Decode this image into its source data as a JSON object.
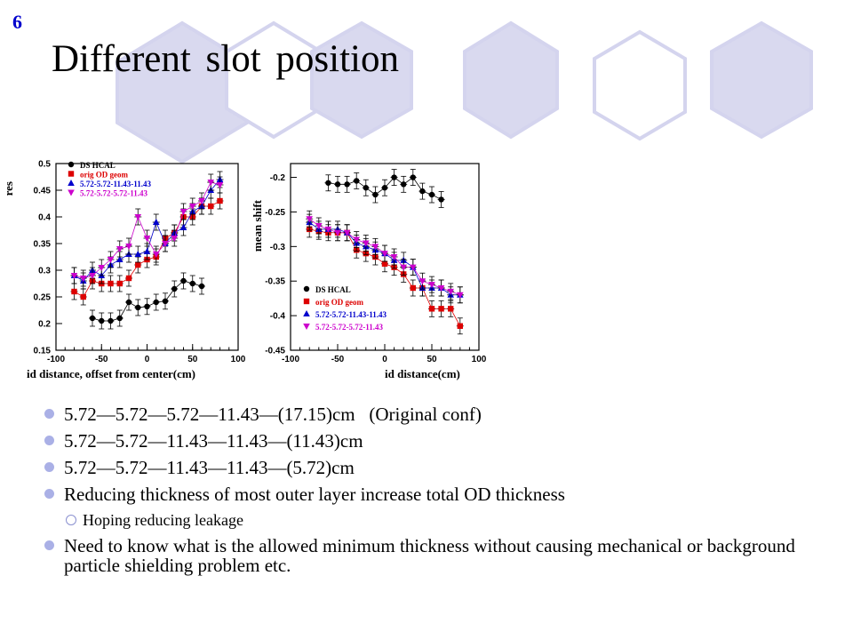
{
  "slide": {
    "number": "6",
    "title": "Different slot position",
    "colors": {
      "hex_fill": "#d9d9ef",
      "hex_stroke": "#d4d4ee",
      "bullet": "#aab0e6"
    }
  },
  "chart_data": [
    {
      "type": "scatter",
      "ylabel": "res",
      "xlabel": "id distance, offset from center(cm)",
      "xlim": [
        -100,
        100
      ],
      "ylim": [
        0.15,
        0.5
      ],
      "xticks": [
        "-100",
        "-50",
        "0",
        "50",
        "100"
      ],
      "yticks": [
        "0.15",
        "0.2",
        "0.25",
        "0.3",
        "0.35",
        "0.4",
        "0.45",
        "0.5"
      ],
      "legend_position": "top-left",
      "series": [
        {
          "name": "DS HCAL",
          "color": "#000000",
          "marker": "circle",
          "x": [
            -60,
            -50,
            -40,
            -30,
            -20,
            -10,
            0,
            10,
            20,
            30,
            40,
            50,
            60
          ],
          "y": [
            0.21,
            0.205,
            0.205,
            0.21,
            0.24,
            0.23,
            0.232,
            0.24,
            0.242,
            0.265,
            0.28,
            0.275,
            0.27
          ]
        },
        {
          "name": "orig OD geom",
          "color": "#dd0000",
          "marker": "square",
          "x": [
            -80,
            -70,
            -60,
            -50,
            -40,
            -30,
            -20,
            -10,
            0,
            10,
            20,
            30,
            40,
            50,
            60,
            70,
            80
          ],
          "y": [
            0.26,
            0.25,
            0.28,
            0.275,
            0.275,
            0.275,
            0.285,
            0.31,
            0.32,
            0.325,
            0.36,
            0.37,
            0.4,
            0.4,
            0.42,
            0.42,
            0.43
          ]
        },
        {
          "name": "5.72-5.72-11.43-11.43",
          "color": "#0000cc",
          "marker": "triangle-up",
          "x": [
            -80,
            -70,
            -60,
            -50,
            -40,
            -30,
            -20,
            -10,
            0,
            10,
            20,
            30,
            40,
            50,
            60,
            70,
            80
          ],
          "y": [
            0.29,
            0.28,
            0.3,
            0.29,
            0.31,
            0.32,
            0.33,
            0.33,
            0.335,
            0.39,
            0.35,
            0.37,
            0.38,
            0.41,
            0.42,
            0.45,
            0.47
          ]
        },
        {
          "name": "5.72-5.72-5.72-11.43",
          "color": "#cc00cc",
          "marker": "triangle-down",
          "x": [
            -80,
            -70,
            -60,
            -50,
            -40,
            -30,
            -20,
            -10,
            0,
            10,
            20,
            30,
            40,
            50,
            60,
            70,
            80
          ],
          "y": [
            0.29,
            0.285,
            0.29,
            0.305,
            0.32,
            0.34,
            0.345,
            0.4,
            0.36,
            0.33,
            0.35,
            0.36,
            0.41,
            0.42,
            0.43,
            0.465,
            0.46
          ]
        }
      ]
    },
    {
      "type": "scatter",
      "ylabel": "mean shift",
      "xlabel": "id distance(cm)",
      "xlim": [
        -100,
        100
      ],
      "ylim": [
        -0.45,
        -0.18
      ],
      "xticks": [
        "-100",
        "-50",
        "0",
        "50",
        "100"
      ],
      "yticks": [
        "-0.2",
        "-0.25",
        "-0.3",
        "-0.35",
        "-0.4",
        "-0.45"
      ],
      "legend_position": "bottom-left",
      "series": [
        {
          "name": "DS HCAL",
          "color": "#000000",
          "marker": "circle",
          "x": [
            -60,
            -50,
            -40,
            -30,
            -20,
            -10,
            0,
            10,
            20,
            30,
            40,
            50,
            60
          ],
          "y": [
            -0.208,
            -0.21,
            -0.21,
            -0.205,
            -0.215,
            -0.225,
            -0.215,
            -0.2,
            -0.21,
            -0.2,
            -0.22,
            -0.225,
            -0.232
          ]
        },
        {
          "name": "orig OD geom",
          "color": "#dd0000",
          "marker": "square",
          "x": [
            -80,
            -70,
            -60,
            -50,
            -40,
            -30,
            -20,
            -10,
            0,
            10,
            20,
            30,
            40,
            50,
            60,
            70,
            80
          ],
          "y": [
            -0.275,
            -0.278,
            -0.28,
            -0.28,
            -0.28,
            -0.305,
            -0.31,
            -0.315,
            -0.325,
            -0.33,
            -0.34,
            -0.36,
            -0.36,
            -0.39,
            -0.39,
            -0.39,
            -0.415
          ]
        },
        {
          "name": "5.72-5.72-11.43-11.43",
          "color": "#0000cc",
          "marker": "triangle-up",
          "x": [
            -80,
            -70,
            -60,
            -50,
            -40,
            -30,
            -20,
            -10,
            0,
            10,
            20,
            30,
            40,
            50,
            60,
            70,
            80
          ],
          "y": [
            -0.265,
            -0.275,
            -0.275,
            -0.275,
            -0.28,
            -0.295,
            -0.3,
            -0.305,
            -0.31,
            -0.32,
            -0.32,
            -0.33,
            -0.36,
            -0.36,
            -0.36,
            -0.37,
            -0.37
          ]
        },
        {
          "name": "5.72-5.72-5.72-11.43",
          "color": "#cc00cc",
          "marker": "triangle-down",
          "x": [
            -80,
            -70,
            -60,
            -50,
            -40,
            -30,
            -20,
            -10,
            0,
            10,
            20,
            30,
            40,
            50,
            60,
            70,
            80
          ],
          "y": [
            -0.26,
            -0.27,
            -0.275,
            -0.28,
            -0.28,
            -0.29,
            -0.295,
            -0.3,
            -0.31,
            -0.315,
            -0.33,
            -0.33,
            -0.35,
            -0.355,
            -0.36,
            -0.365,
            -0.37
          ]
        }
      ]
    }
  ],
  "bullets": [
    {
      "level": 1,
      "text": "5.72—5.72—5.72—11.43—(17.15)cm   (Original conf)"
    },
    {
      "level": 1,
      "text": "5.72—5.72—11.43—11.43—(11.43)cm"
    },
    {
      "level": 1,
      "text": "5.72—5.72—11.43—11.43—(5.72)cm"
    },
    {
      "level": 1,
      "text": "Reducing thickness of most outer layer increase total OD thickness"
    },
    {
      "level": 2,
      "text": "Hoping reducing leakage"
    },
    {
      "level": 1,
      "text": "Need to know what is the allowed minimum thickness without causing mechanical or background particle shielding problem etc."
    }
  ]
}
